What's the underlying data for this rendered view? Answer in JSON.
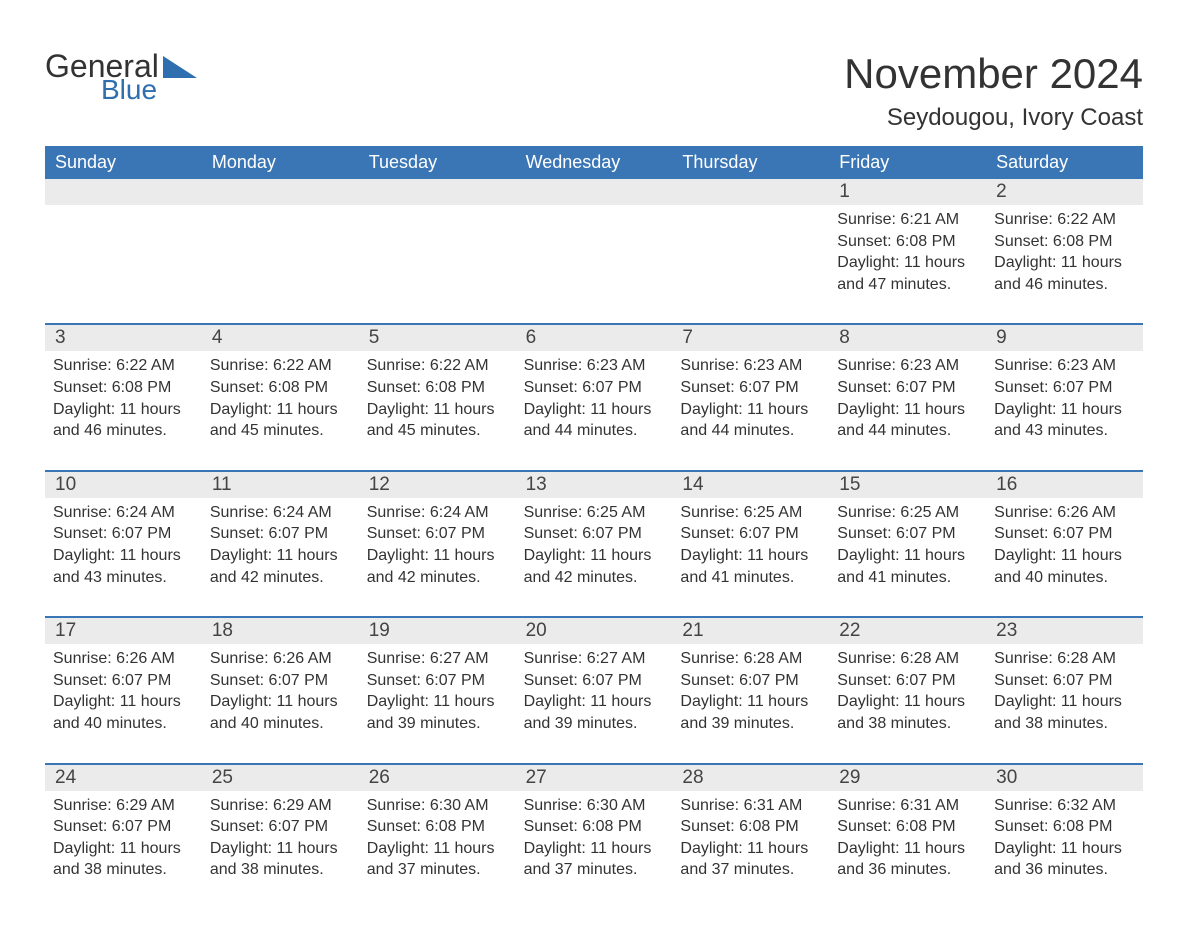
{
  "logo": {
    "text1": "General",
    "text2": "Blue",
    "shape_color": "#2f6fb0",
    "text1_color": "#333333",
    "text2_color": "#2f6fb0"
  },
  "title": "November 2024",
  "location": "Seydougou, Ivory Coast",
  "colors": {
    "header_bg": "#3a76b5",
    "header_text": "#ffffff",
    "row_divider": "#3a76b5",
    "daynum_bg": "#ebebeb",
    "body_text": "#333333",
    "background": "#ffffff"
  },
  "weekdays": [
    "Sunday",
    "Monday",
    "Tuesday",
    "Wednesday",
    "Thursday",
    "Friday",
    "Saturday"
  ],
  "weeks": [
    [
      {
        "blank": true
      },
      {
        "blank": true
      },
      {
        "blank": true
      },
      {
        "blank": true
      },
      {
        "blank": true
      },
      {
        "n": "1",
        "sr": "Sunrise: 6:21 AM",
        "ss": "Sunset: 6:08 PM",
        "d1": "Daylight: 11 hours",
        "d2": "and 47 minutes."
      },
      {
        "n": "2",
        "sr": "Sunrise: 6:22 AM",
        "ss": "Sunset: 6:08 PM",
        "d1": "Daylight: 11 hours",
        "d2": "and 46 minutes."
      }
    ],
    [
      {
        "n": "3",
        "sr": "Sunrise: 6:22 AM",
        "ss": "Sunset: 6:08 PM",
        "d1": "Daylight: 11 hours",
        "d2": "and 46 minutes."
      },
      {
        "n": "4",
        "sr": "Sunrise: 6:22 AM",
        "ss": "Sunset: 6:08 PM",
        "d1": "Daylight: 11 hours",
        "d2": "and 45 minutes."
      },
      {
        "n": "5",
        "sr": "Sunrise: 6:22 AM",
        "ss": "Sunset: 6:08 PM",
        "d1": "Daylight: 11 hours",
        "d2": "and 45 minutes."
      },
      {
        "n": "6",
        "sr": "Sunrise: 6:23 AM",
        "ss": "Sunset: 6:07 PM",
        "d1": "Daylight: 11 hours",
        "d2": "and 44 minutes."
      },
      {
        "n": "7",
        "sr": "Sunrise: 6:23 AM",
        "ss": "Sunset: 6:07 PM",
        "d1": "Daylight: 11 hours",
        "d2": "and 44 minutes."
      },
      {
        "n": "8",
        "sr": "Sunrise: 6:23 AM",
        "ss": "Sunset: 6:07 PM",
        "d1": "Daylight: 11 hours",
        "d2": "and 44 minutes."
      },
      {
        "n": "9",
        "sr": "Sunrise: 6:23 AM",
        "ss": "Sunset: 6:07 PM",
        "d1": "Daylight: 11 hours",
        "d2": "and 43 minutes."
      }
    ],
    [
      {
        "n": "10",
        "sr": "Sunrise: 6:24 AM",
        "ss": "Sunset: 6:07 PM",
        "d1": "Daylight: 11 hours",
        "d2": "and 43 minutes."
      },
      {
        "n": "11",
        "sr": "Sunrise: 6:24 AM",
        "ss": "Sunset: 6:07 PM",
        "d1": "Daylight: 11 hours",
        "d2": "and 42 minutes."
      },
      {
        "n": "12",
        "sr": "Sunrise: 6:24 AM",
        "ss": "Sunset: 6:07 PM",
        "d1": "Daylight: 11 hours",
        "d2": "and 42 minutes."
      },
      {
        "n": "13",
        "sr": "Sunrise: 6:25 AM",
        "ss": "Sunset: 6:07 PM",
        "d1": "Daylight: 11 hours",
        "d2": "and 42 minutes."
      },
      {
        "n": "14",
        "sr": "Sunrise: 6:25 AM",
        "ss": "Sunset: 6:07 PM",
        "d1": "Daylight: 11 hours",
        "d2": "and 41 minutes."
      },
      {
        "n": "15",
        "sr": "Sunrise: 6:25 AM",
        "ss": "Sunset: 6:07 PM",
        "d1": "Daylight: 11 hours",
        "d2": "and 41 minutes."
      },
      {
        "n": "16",
        "sr": "Sunrise: 6:26 AM",
        "ss": "Sunset: 6:07 PM",
        "d1": "Daylight: 11 hours",
        "d2": "and 40 minutes."
      }
    ],
    [
      {
        "n": "17",
        "sr": "Sunrise: 6:26 AM",
        "ss": "Sunset: 6:07 PM",
        "d1": "Daylight: 11 hours",
        "d2": "and 40 minutes."
      },
      {
        "n": "18",
        "sr": "Sunrise: 6:26 AM",
        "ss": "Sunset: 6:07 PM",
        "d1": "Daylight: 11 hours",
        "d2": "and 40 minutes."
      },
      {
        "n": "19",
        "sr": "Sunrise: 6:27 AM",
        "ss": "Sunset: 6:07 PM",
        "d1": "Daylight: 11 hours",
        "d2": "and 39 minutes."
      },
      {
        "n": "20",
        "sr": "Sunrise: 6:27 AM",
        "ss": "Sunset: 6:07 PM",
        "d1": "Daylight: 11 hours",
        "d2": "and 39 minutes."
      },
      {
        "n": "21",
        "sr": "Sunrise: 6:28 AM",
        "ss": "Sunset: 6:07 PM",
        "d1": "Daylight: 11 hours",
        "d2": "and 39 minutes."
      },
      {
        "n": "22",
        "sr": "Sunrise: 6:28 AM",
        "ss": "Sunset: 6:07 PM",
        "d1": "Daylight: 11 hours",
        "d2": "and 38 minutes."
      },
      {
        "n": "23",
        "sr": "Sunrise: 6:28 AM",
        "ss": "Sunset: 6:07 PM",
        "d1": "Daylight: 11 hours",
        "d2": "and 38 minutes."
      }
    ],
    [
      {
        "n": "24",
        "sr": "Sunrise: 6:29 AM",
        "ss": "Sunset: 6:07 PM",
        "d1": "Daylight: 11 hours",
        "d2": "and 38 minutes."
      },
      {
        "n": "25",
        "sr": "Sunrise: 6:29 AM",
        "ss": "Sunset: 6:07 PM",
        "d1": "Daylight: 11 hours",
        "d2": "and 38 minutes."
      },
      {
        "n": "26",
        "sr": "Sunrise: 6:30 AM",
        "ss": "Sunset: 6:08 PM",
        "d1": "Daylight: 11 hours",
        "d2": "and 37 minutes."
      },
      {
        "n": "27",
        "sr": "Sunrise: 6:30 AM",
        "ss": "Sunset: 6:08 PM",
        "d1": "Daylight: 11 hours",
        "d2": "and 37 minutes."
      },
      {
        "n": "28",
        "sr": "Sunrise: 6:31 AM",
        "ss": "Sunset: 6:08 PM",
        "d1": "Daylight: 11 hours",
        "d2": "and 37 minutes."
      },
      {
        "n": "29",
        "sr": "Sunrise: 6:31 AM",
        "ss": "Sunset: 6:08 PM",
        "d1": "Daylight: 11 hours",
        "d2": "and 36 minutes."
      },
      {
        "n": "30",
        "sr": "Sunrise: 6:32 AM",
        "ss": "Sunset: 6:08 PM",
        "d1": "Daylight: 11 hours",
        "d2": "and 36 minutes."
      }
    ]
  ]
}
